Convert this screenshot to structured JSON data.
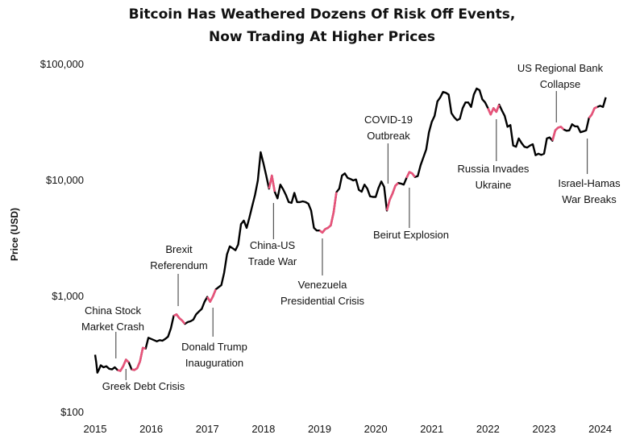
{
  "chart_data": {
    "type": "line",
    "title": "Bitcoin Has Weathered Dozens Of Risk Off Events,",
    "subtitle": "Now Trading At Higher Prices",
    "xlabel": "",
    "ylabel": "Price (USD)",
    "yscale": "log",
    "ylim": [
      100,
      100000
    ],
    "xlim": [
      2015.0,
      2024.25
    ],
    "x_ticks": [
      "2015",
      "2016",
      "2017",
      "2018",
      "2019",
      "2020",
      "2021",
      "2022",
      "2023",
      "2024"
    ],
    "y_ticks": [
      {
        "value": 100,
        "label": "$100"
      },
      {
        "value": 1000,
        "label": "$1,000"
      },
      {
        "value": 10000,
        "label": "$10,000"
      },
      {
        "value": 100000,
        "label": "$100,000"
      }
    ],
    "grid": false,
    "colors": {
      "price": "#000000",
      "risk_off": "#e8537a",
      "annotation_line": "#555555"
    },
    "series": [
      {
        "values_note_free": true,
        "points": [
          [
            2015.0,
            314
          ],
          [
            2015.02,
            270
          ],
          [
            2015.04,
            220
          ],
          [
            2015.07,
            235
          ],
          [
            2015.1,
            255
          ],
          [
            2015.15,
            245
          ],
          [
            2015.2,
            250
          ],
          [
            2015.25,
            238
          ],
          [
            2015.3,
            235
          ],
          [
            2015.35,
            245
          ],
          [
            2015.4,
            232
          ],
          [
            2015.45,
            228
          ],
          [
            2015.5,
            250
          ],
          [
            2015.55,
            285
          ],
          [
            2015.6,
            270
          ],
          [
            2015.65,
            235
          ],
          [
            2015.7,
            232
          ],
          [
            2015.75,
            240
          ],
          [
            2015.8,
            275
          ],
          [
            2015.85,
            360
          ],
          [
            2015.9,
            355
          ],
          [
            2015.95,
            440
          ],
          [
            2016.0,
            430
          ],
          [
            2016.05,
            420
          ],
          [
            2016.1,
            410
          ],
          [
            2016.15,
            420
          ],
          [
            2016.2,
            415
          ],
          [
            2016.25,
            430
          ],
          [
            2016.3,
            450
          ],
          [
            2016.35,
            530
          ],
          [
            2016.4,
            680
          ],
          [
            2016.45,
            700
          ],
          [
            2016.5,
            650
          ],
          [
            2016.55,
            620
          ],
          [
            2016.6,
            580
          ],
          [
            2016.65,
            600
          ],
          [
            2016.7,
            610
          ],
          [
            2016.75,
            630
          ],
          [
            2016.8,
            700
          ],
          [
            2016.85,
            740
          ],
          [
            2016.9,
            780
          ],
          [
            2016.95,
            900
          ],
          [
            2017.0,
            990
          ],
          [
            2017.05,
            900
          ],
          [
            2017.1,
            1000
          ],
          [
            2017.15,
            1150
          ],
          [
            2017.2,
            1200
          ],
          [
            2017.25,
            1250
          ],
          [
            2017.3,
            1600
          ],
          [
            2017.35,
            2300
          ],
          [
            2017.4,
            2700
          ],
          [
            2017.45,
            2600
          ],
          [
            2017.5,
            2500
          ],
          [
            2017.55,
            2800
          ],
          [
            2017.6,
            4200
          ],
          [
            2017.65,
            4500
          ],
          [
            2017.7,
            3900
          ],
          [
            2017.75,
            4800
          ],
          [
            2017.8,
            6000
          ],
          [
            2017.85,
            7500
          ],
          [
            2017.9,
            10000
          ],
          [
            2017.95,
            17500
          ],
          [
            2018.0,
            14000
          ],
          [
            2018.05,
            11000
          ],
          [
            2018.1,
            8500
          ],
          [
            2018.15,
            11000
          ],
          [
            2018.2,
            8000
          ],
          [
            2018.25,
            7000
          ],
          [
            2018.3,
            9200
          ],
          [
            2018.35,
            8400
          ],
          [
            2018.4,
            7500
          ],
          [
            2018.45,
            6500
          ],
          [
            2018.5,
            6400
          ],
          [
            2018.55,
            7800
          ],
          [
            2018.6,
            6500
          ],
          [
            2018.65,
            6500
          ],
          [
            2018.7,
            6600
          ],
          [
            2018.75,
            6500
          ],
          [
            2018.8,
            6300
          ],
          [
            2018.85,
            5500
          ],
          [
            2018.9,
            3900
          ],
          [
            2018.95,
            3700
          ],
          [
            2019.0,
            3700
          ],
          [
            2019.05,
            3550
          ],
          [
            2019.1,
            3800
          ],
          [
            2019.15,
            3900
          ],
          [
            2019.2,
            4100
          ],
          [
            2019.25,
            5300
          ],
          [
            2019.3,
            7900
          ],
          [
            2019.35,
            8500
          ],
          [
            2019.4,
            11000
          ],
          [
            2019.45,
            11500
          ],
          [
            2019.5,
            10500
          ],
          [
            2019.55,
            10300
          ],
          [
            2019.6,
            10000
          ],
          [
            2019.65,
            10200
          ],
          [
            2019.7,
            8300
          ],
          [
            2019.75,
            8000
          ],
          [
            2019.8,
            9200
          ],
          [
            2019.85,
            8500
          ],
          [
            2019.9,
            7300
          ],
          [
            2019.95,
            7200
          ],
          [
            2020.0,
            7200
          ],
          [
            2020.05,
            8600
          ],
          [
            2020.1,
            9800
          ],
          [
            2020.15,
            8800
          ],
          [
            2020.2,
            5500
          ],
          [
            2020.25,
            6800
          ],
          [
            2020.3,
            7700
          ],
          [
            2020.35,
            9000
          ],
          [
            2020.4,
            9500
          ],
          [
            2020.45,
            9400
          ],
          [
            2020.5,
            9200
          ],
          [
            2020.55,
            10500
          ],
          [
            2020.6,
            11800
          ],
          [
            2020.65,
            11500
          ],
          [
            2020.7,
            10700
          ],
          [
            2020.75,
            10900
          ],
          [
            2020.8,
            13500
          ],
          [
            2020.85,
            15800
          ],
          [
            2020.9,
            18500
          ],
          [
            2020.95,
            26000
          ],
          [
            2021.0,
            32000
          ],
          [
            2021.05,
            36000
          ],
          [
            2021.1,
            48000
          ],
          [
            2021.15,
            52000
          ],
          [
            2021.2,
            58000
          ],
          [
            2021.25,
            57000
          ],
          [
            2021.3,
            55000
          ],
          [
            2021.35,
            38000
          ],
          [
            2021.4,
            35000
          ],
          [
            2021.45,
            33000
          ],
          [
            2021.5,
            34000
          ],
          [
            2021.55,
            42000
          ],
          [
            2021.6,
            47000
          ],
          [
            2021.65,
            47000
          ],
          [
            2021.7,
            43000
          ],
          [
            2021.75,
            55000
          ],
          [
            2021.8,
            62000
          ],
          [
            2021.85,
            60000
          ],
          [
            2021.9,
            50000
          ],
          [
            2021.95,
            47000
          ],
          [
            2022.0,
            42000
          ],
          [
            2022.05,
            37000
          ],
          [
            2022.1,
            42000
          ],
          [
            2022.15,
            39000
          ],
          [
            2022.2,
            45000
          ],
          [
            2022.25,
            40000
          ],
          [
            2022.3,
            36000
          ],
          [
            2022.35,
            29000
          ],
          [
            2022.4,
            30000
          ],
          [
            2022.45,
            20000
          ],
          [
            2022.5,
            19500
          ],
          [
            2022.55,
            23000
          ],
          [
            2022.6,
            21000
          ],
          [
            2022.65,
            19500
          ],
          [
            2022.7,
            19200
          ],
          [
            2022.75,
            20000
          ],
          [
            2022.8,
            20500
          ],
          [
            2022.85,
            16500
          ],
          [
            2022.9,
            17000
          ],
          [
            2022.95,
            16600
          ],
          [
            2023.0,
            17000
          ],
          [
            2023.05,
            23000
          ],
          [
            2023.1,
            23500
          ],
          [
            2023.15,
            22000
          ],
          [
            2023.2,
            27000
          ],
          [
            2023.25,
            28500
          ],
          [
            2023.3,
            29000
          ],
          [
            2023.35,
            27500
          ],
          [
            2023.4,
            26800
          ],
          [
            2023.45,
            27000
          ],
          [
            2023.5,
            30500
          ],
          [
            2023.55,
            29300
          ],
          [
            2023.6,
            29200
          ],
          [
            2023.65,
            26000
          ],
          [
            2023.7,
            26500
          ],
          [
            2023.75,
            27000
          ],
          [
            2023.8,
            34500
          ],
          [
            2023.85,
            37000
          ],
          [
            2023.9,
            42000
          ],
          [
            2023.95,
            43000
          ],
          [
            2024.0,
            44000
          ],
          [
            2024.05,
            43000
          ],
          [
            2024.1,
            52000
          ]
        ],
        "risk_off_segments": [
          [
            2015.38,
            2015.62
          ],
          [
            2015.62,
            2015.92
          ],
          [
            2016.38,
            2016.62
          ],
          [
            2017.0,
            2017.18
          ],
          [
            2018.1,
            2018.24
          ],
          [
            2019.0,
            2019.3
          ],
          [
            2020.18,
            2020.42
          ],
          [
            2020.55,
            2020.72
          ],
          [
            2021.98,
            2022.2
          ],
          [
            2023.15,
            2023.38
          ],
          [
            2023.78,
            2023.95
          ]
        ]
      }
    ],
    "annotations": [
      {
        "label": [
          "China Stock",
          "Market Crash"
        ],
        "x": 2015.37,
        "y": 250,
        "text_y": 1600
      },
      {
        "label": [
          "Greek Debt Crisis"
        ],
        "x": 2015.55,
        "y": 200,
        "text_y": 0
      },
      {
        "label": [
          "Brexit",
          "Referendum"
        ],
        "x": 2016.48,
        "y": 820,
        "text_y": 0
      },
      {
        "label": [
          "Donald Trump",
          "Inauguration"
        ],
        "x": 2017.1,
        "y": 820,
        "text_y": 0
      },
      {
        "label": [
          "China-US",
          "Trade War"
        ],
        "x": 2018.18,
        "y": 8000,
        "text_y": 0
      },
      {
        "label": [
          "Venezuela",
          "Presidential Crisis"
        ],
        "x": 2019.05,
        "y": 2800,
        "text_y": 0
      },
      {
        "label": [
          "COVID-19",
          "Outbreak"
        ],
        "x": 2020.22,
        "y": 10000,
        "text_y": 0
      },
      {
        "label": [
          "Beirut Explosion"
        ],
        "x": 2020.6,
        "y": 9500,
        "text_y": 0
      },
      {
        "label": [
          "Russia Invades",
          "Ukraine"
        ],
        "x": 2022.15,
        "y": 35000,
        "text_y": 0
      },
      {
        "label": [
          "US Regional Bank",
          "Collapse"
        ],
        "x": 2023.22,
        "y": 32000,
        "text_y": 0
      },
      {
        "label": [
          "Israel-Hamas",
          "War Breaks"
        ],
        "x": 2023.77,
        "y": 27000,
        "text_y": 0
      }
    ]
  }
}
